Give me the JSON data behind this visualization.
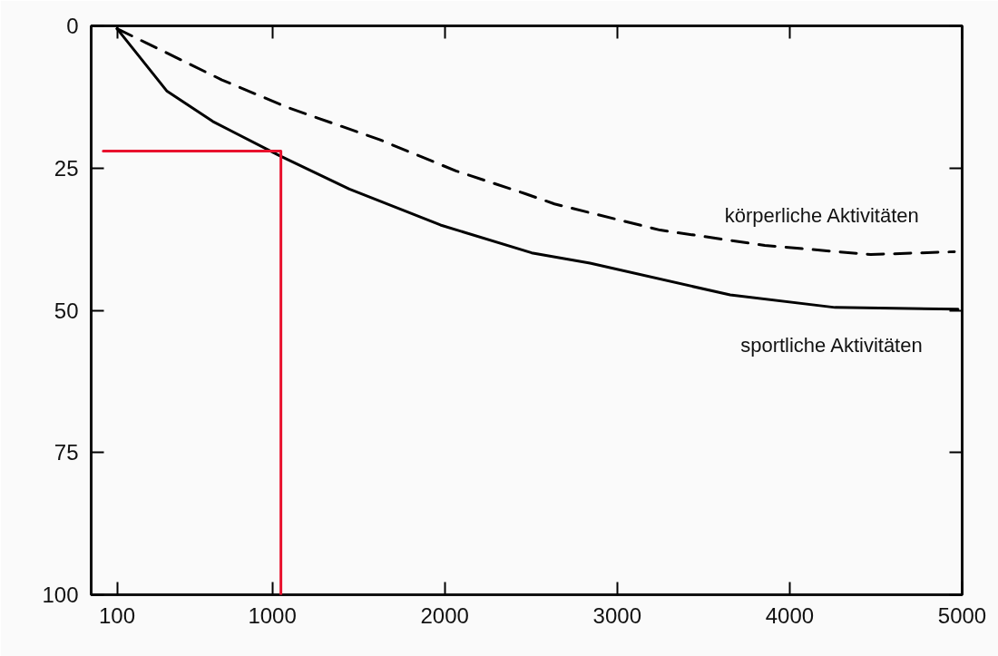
{
  "chart_data": {
    "type": "line",
    "xlim": [
      -50,
      5000
    ],
    "ylim": [
      100,
      0
    ],
    "xticks": [
      100,
      1000,
      2000,
      3000,
      4000,
      5000
    ],
    "yticks": [
      0,
      25,
      50,
      75,
      100
    ],
    "grid": false,
    "legend": false,
    "marker": "none",
    "series": [
      {
        "name": "sportliche Aktivitäten",
        "color": "#000000",
        "line_style": "solid",
        "x": [
          100,
          390,
          655,
          1040,
          1447,
          1975,
          2504,
          2842,
          3655,
          4263,
          4976
        ],
        "values": [
          0.5,
          11.5,
          16.8,
          22.8,
          28.7,
          35,
          39.9,
          41.7,
          47.3,
          49.5,
          49.8
        ]
      },
      {
        "name": "körperliche Aktivitäten",
        "color": "#000000",
        "line_style": "dashed",
        "x": [
          100,
          270,
          708,
          1094,
          1622,
          2065,
          2467,
          2636,
          3249,
          3856,
          4469,
          4955
        ],
        "values": [
          0.5,
          3,
          9.5,
          14.4,
          20,
          25.5,
          29.5,
          31.3,
          35.9,
          38.6,
          40.2,
          39.7
        ]
      },
      {
        "color": "#e8112d",
        "line_style": "solid",
        "x": [
          20,
          1050,
          1050
        ],
        "values": [
          22,
          22,
          100
        ]
      }
    ]
  }
}
